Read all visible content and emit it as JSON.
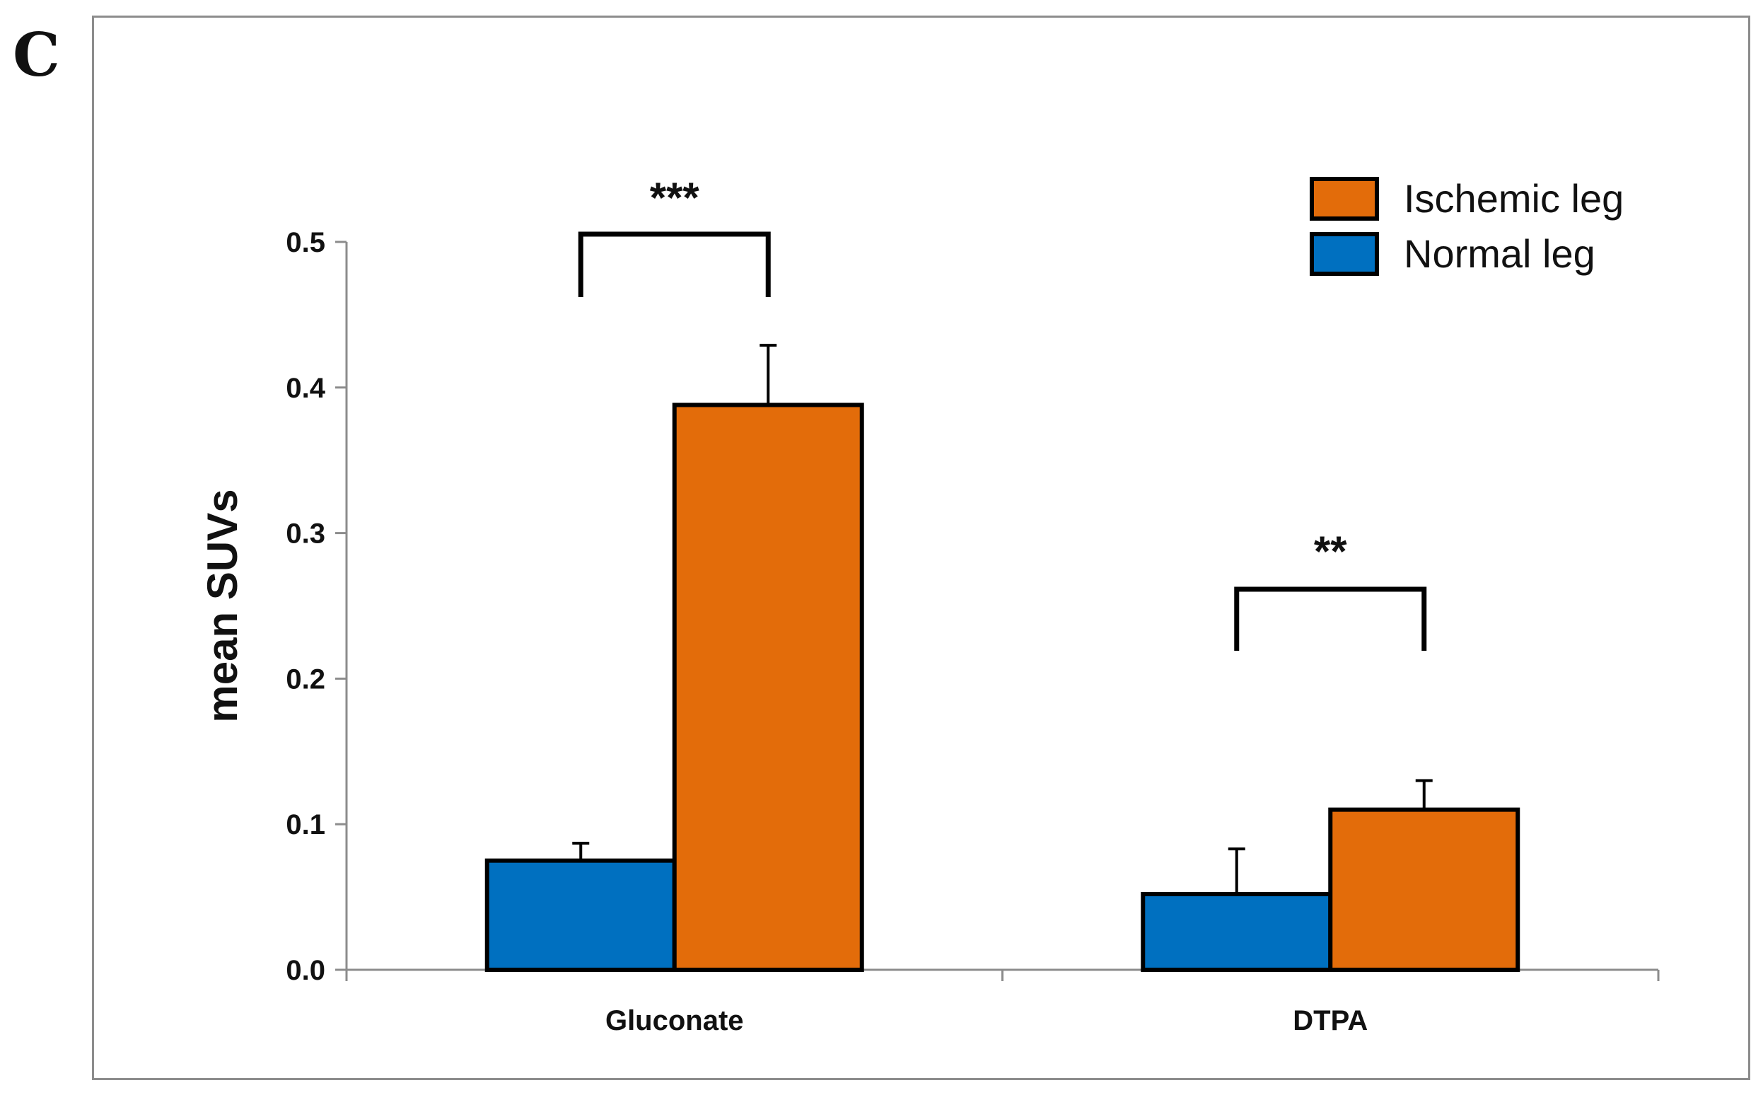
{
  "panel_label": "C",
  "chart_data": {
    "type": "bar",
    "title": "",
    "xlabel": "",
    "ylabel": "mean SUVs",
    "ylim": [
      0,
      0.5
    ],
    "yticks": [
      "0.0",
      "0.1",
      "0.2",
      "0.3",
      "0.4",
      "0.5"
    ],
    "ytick_values": [
      0,
      0.1,
      0.2,
      0.3,
      0.4,
      0.5
    ],
    "categories": [
      "Gluconate",
      "DTPA"
    ],
    "series": [
      {
        "name": "Normal leg",
        "color": "#0070c0",
        "values": [
          0.075,
          0.052
        ],
        "errors": [
          0.012,
          0.031
        ]
      },
      {
        "name": "Ischemic leg",
        "color": "#e36c0a",
        "values": [
          0.388,
          0.11
        ],
        "errors": [
          0.041,
          0.02
        ]
      }
    ],
    "legend": {
      "position": "top-right",
      "entries": [
        {
          "label": "Ischemic leg",
          "color": "#e36c0a"
        },
        {
          "label": "Normal leg",
          "color": "#0070c0"
        }
      ]
    },
    "significance": [
      {
        "category": "Gluconate",
        "label": "***"
      },
      {
        "category": "DTPA",
        "label": "**"
      }
    ],
    "grid": false
  }
}
